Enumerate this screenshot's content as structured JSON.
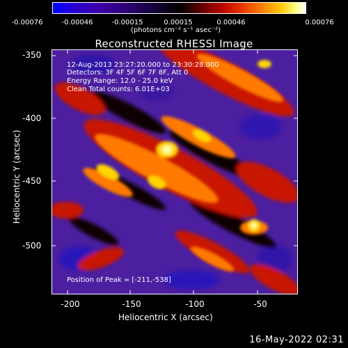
{
  "colorbar": {
    "ticks": [
      "-0.00076",
      "-0.00046",
      "-0.00015",
      "0.00015",
      "0.00046",
      "0.00076"
    ],
    "units": "(photons cm⁻² s⁻¹ asec⁻²)"
  },
  "title": "Reconstructed RHESSI Image",
  "annotations": {
    "time_range": "12-Aug-2013 23:27:20.000 to 23:30:28.000",
    "detectors": "Detectors: 3F 4F 5F 6F 7F 8F, Att 0",
    "energy": "Energy Range: 12.0 - 25.0 keV",
    "method": "Clean    Total counts: 6.01E+03",
    "peak": "Position of Peak = [-211,-538]"
  },
  "axes": {
    "xlabel": "Heliocentric X (arcsec)",
    "ylabel": "Heliocentric Y (arcsec)",
    "xticks": [
      "-200",
      "-150",
      "-100",
      "-50"
    ],
    "yticks": [
      "-350",
      "-400",
      "-450",
      "-500"
    ]
  },
  "timestamp": "16-May-2022 02:31"
}
